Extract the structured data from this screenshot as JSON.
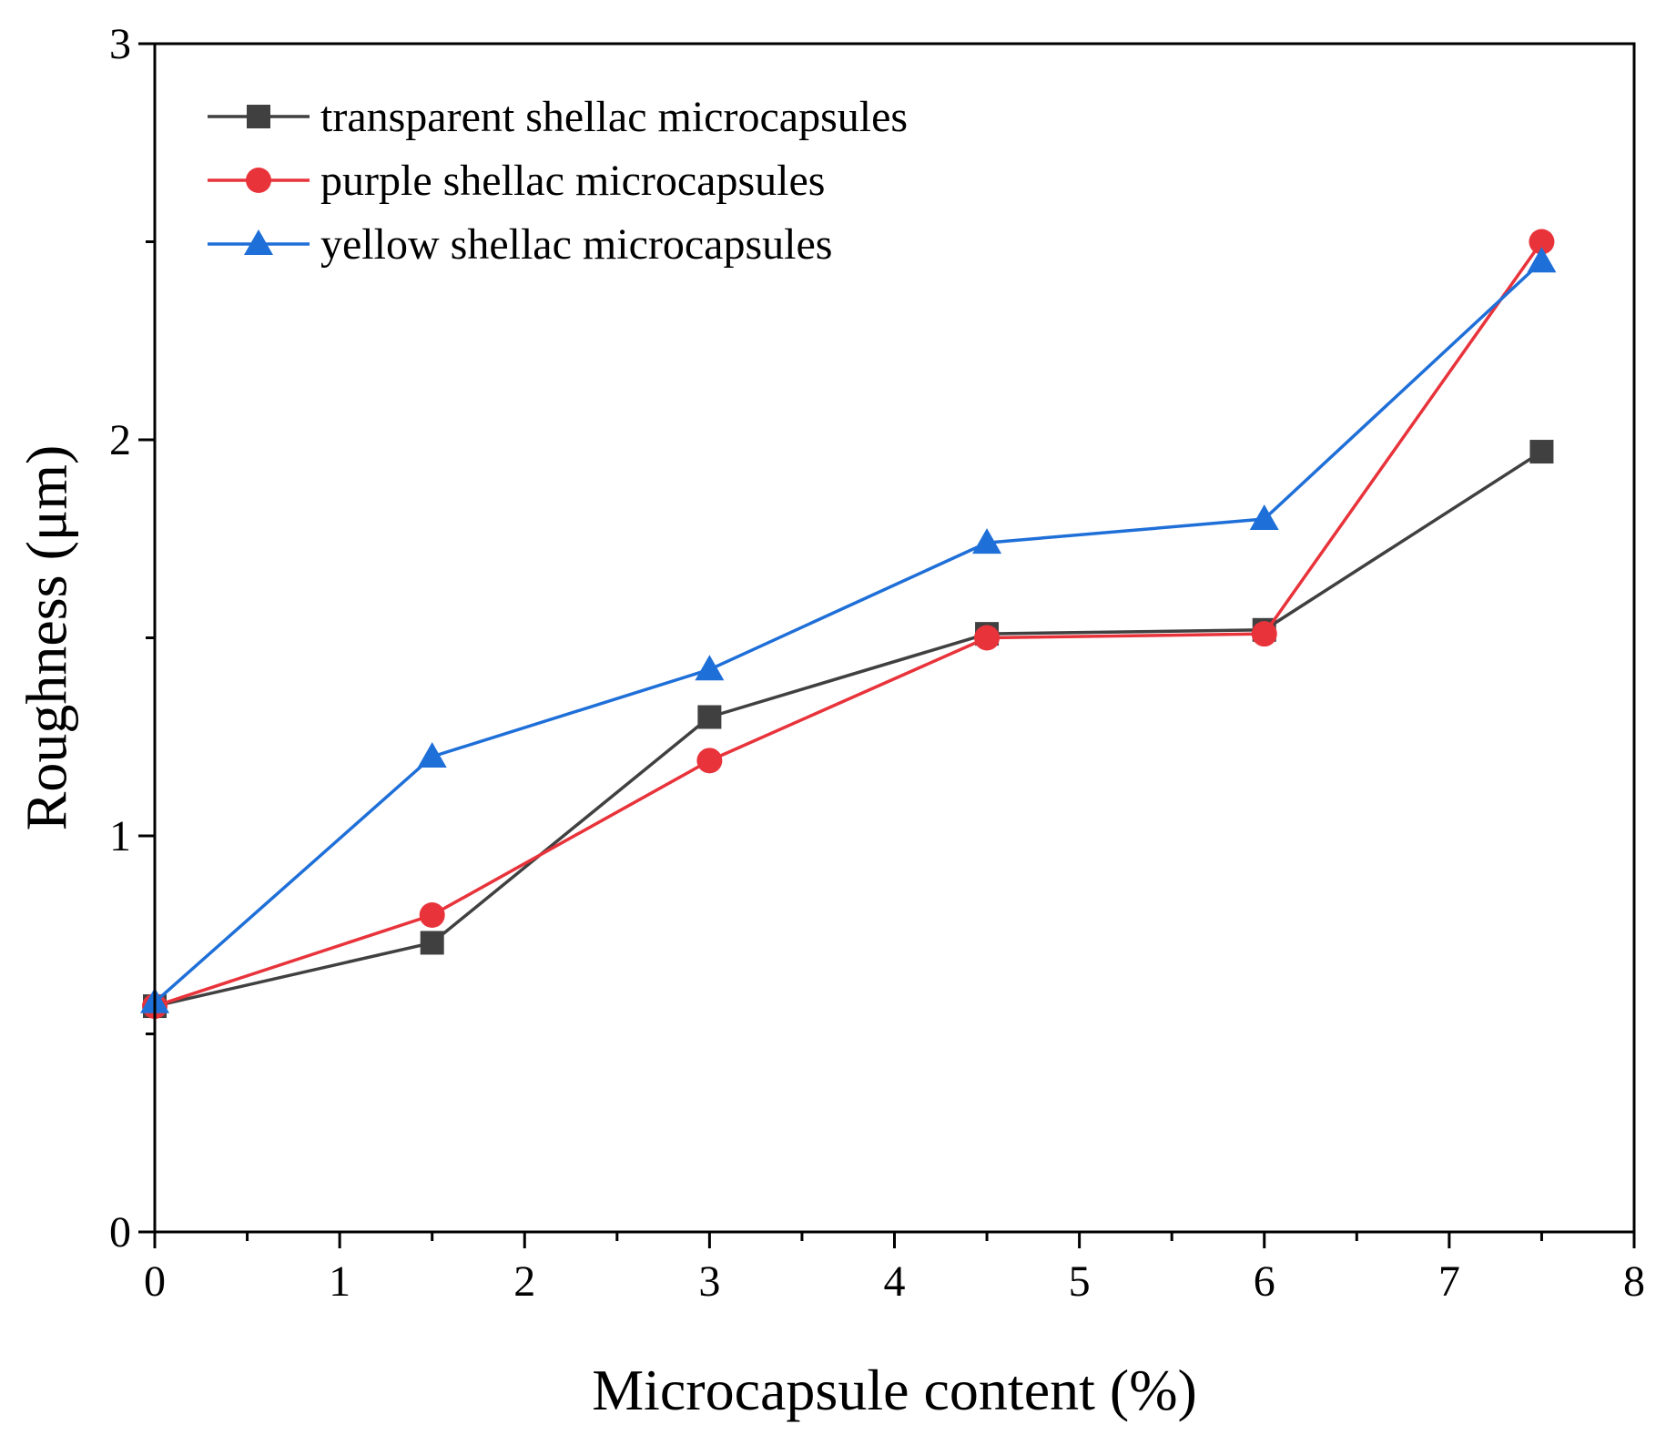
{
  "chart_data": {
    "type": "line",
    "title": "",
    "xlabel": "Microcapsule content (%)",
    "ylabel": "Roughness (μm)",
    "xlim": [
      0,
      8
    ],
    "ylim": [
      0,
      3
    ],
    "xticks": [
      0,
      1,
      2,
      3,
      4,
      5,
      6,
      7,
      8
    ],
    "yticks": [
      0,
      1,
      2,
      3
    ],
    "x": [
      0,
      1.5,
      3,
      4.5,
      6,
      7.5
    ],
    "grid": false,
    "legend_position": "top-left",
    "series": [
      {
        "name": "transparent shellac microcapsules",
        "marker": "square",
        "color": "#404040",
        "values": [
          0.57,
          0.73,
          1.3,
          1.51,
          1.52,
          1.97
        ]
      },
      {
        "name": "purple shellac microcapsules",
        "marker": "circle",
        "color": "#e8333b",
        "values": [
          0.57,
          0.8,
          1.19,
          1.5,
          1.51,
          2.5
        ]
      },
      {
        "name": "yellow shellac microcapsules",
        "marker": "triangle",
        "color": "#1f6fd8",
        "values": [
          0.58,
          1.2,
          1.42,
          1.74,
          1.8,
          2.45
        ]
      }
    ]
  }
}
